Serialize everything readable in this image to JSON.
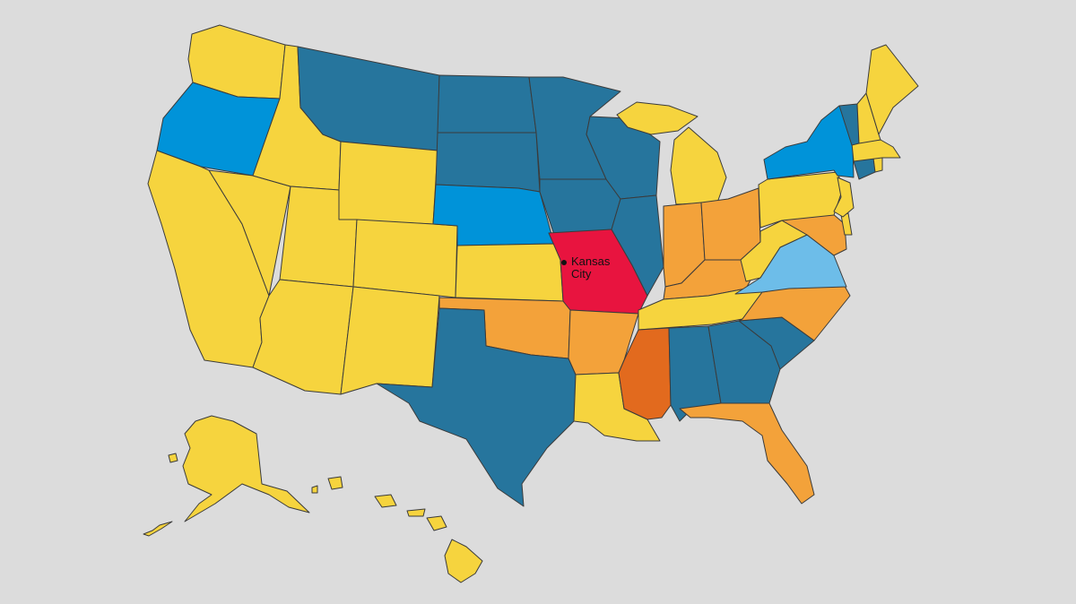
{
  "map": {
    "palette": {
      "yellow": "#f6d43e",
      "dark-teal": "#26759d",
      "blue": "#0093d9",
      "light-blue": "#6dbde9",
      "orange": "#f3a23a",
      "dark-orange": "#e26a1e",
      "red": "#e8143f",
      "border": "#3b3b3b",
      "background": "#dcdcdc"
    },
    "states": [
      {
        "id": "WA",
        "color": "yellow"
      },
      {
        "id": "OR",
        "color": "blue"
      },
      {
        "id": "CA",
        "color": "yellow"
      },
      {
        "id": "NV",
        "color": "yellow"
      },
      {
        "id": "ID",
        "color": "yellow"
      },
      {
        "id": "MT",
        "color": "dark-teal"
      },
      {
        "id": "WY",
        "color": "yellow"
      },
      {
        "id": "UT",
        "color": "yellow"
      },
      {
        "id": "AZ",
        "color": "yellow"
      },
      {
        "id": "CO",
        "color": "yellow"
      },
      {
        "id": "NM",
        "color": "yellow"
      },
      {
        "id": "ND",
        "color": "dark-teal"
      },
      {
        "id": "SD",
        "color": "dark-teal"
      },
      {
        "id": "NE",
        "color": "blue"
      },
      {
        "id": "KS",
        "color": "yellow"
      },
      {
        "id": "OK",
        "color": "orange"
      },
      {
        "id": "TX",
        "color": "dark-teal"
      },
      {
        "id": "MN",
        "color": "dark-teal"
      },
      {
        "id": "IA",
        "color": "dark-teal"
      },
      {
        "id": "MO",
        "color": "red"
      },
      {
        "id": "AR",
        "color": "orange"
      },
      {
        "id": "LA",
        "color": "yellow"
      },
      {
        "id": "WI",
        "color": "dark-teal"
      },
      {
        "id": "IL",
        "color": "dark-teal"
      },
      {
        "id": "MI",
        "color": "yellow"
      },
      {
        "id": "IN",
        "color": "orange"
      },
      {
        "id": "OH",
        "color": "orange"
      },
      {
        "id": "KY",
        "color": "orange"
      },
      {
        "id": "TN",
        "color": "yellow"
      },
      {
        "id": "MS",
        "color": "dark-orange"
      },
      {
        "id": "AL",
        "color": "dark-teal"
      },
      {
        "id": "GA",
        "color": "dark-teal"
      },
      {
        "id": "FL",
        "color": "orange"
      },
      {
        "id": "SC",
        "color": "dark-teal"
      },
      {
        "id": "NC",
        "color": "orange"
      },
      {
        "id": "VA",
        "color": "light-blue"
      },
      {
        "id": "WV",
        "color": "yellow"
      },
      {
        "id": "MD",
        "color": "orange"
      },
      {
        "id": "DE",
        "color": "yellow"
      },
      {
        "id": "PA",
        "color": "yellow"
      },
      {
        "id": "NJ",
        "color": "yellow"
      },
      {
        "id": "NY",
        "color": "blue"
      },
      {
        "id": "CT",
        "color": "dark-teal"
      },
      {
        "id": "RI",
        "color": "yellow"
      },
      {
        "id": "MA",
        "color": "yellow"
      },
      {
        "id": "VT",
        "color": "dark-teal"
      },
      {
        "id": "NH",
        "color": "yellow"
      },
      {
        "id": "ME",
        "color": "yellow"
      },
      {
        "id": "AK",
        "color": "yellow"
      },
      {
        "id": "HI",
        "color": "yellow"
      }
    ],
    "city_marker": {
      "line1": "Kansas",
      "line2": "City"
    }
  }
}
